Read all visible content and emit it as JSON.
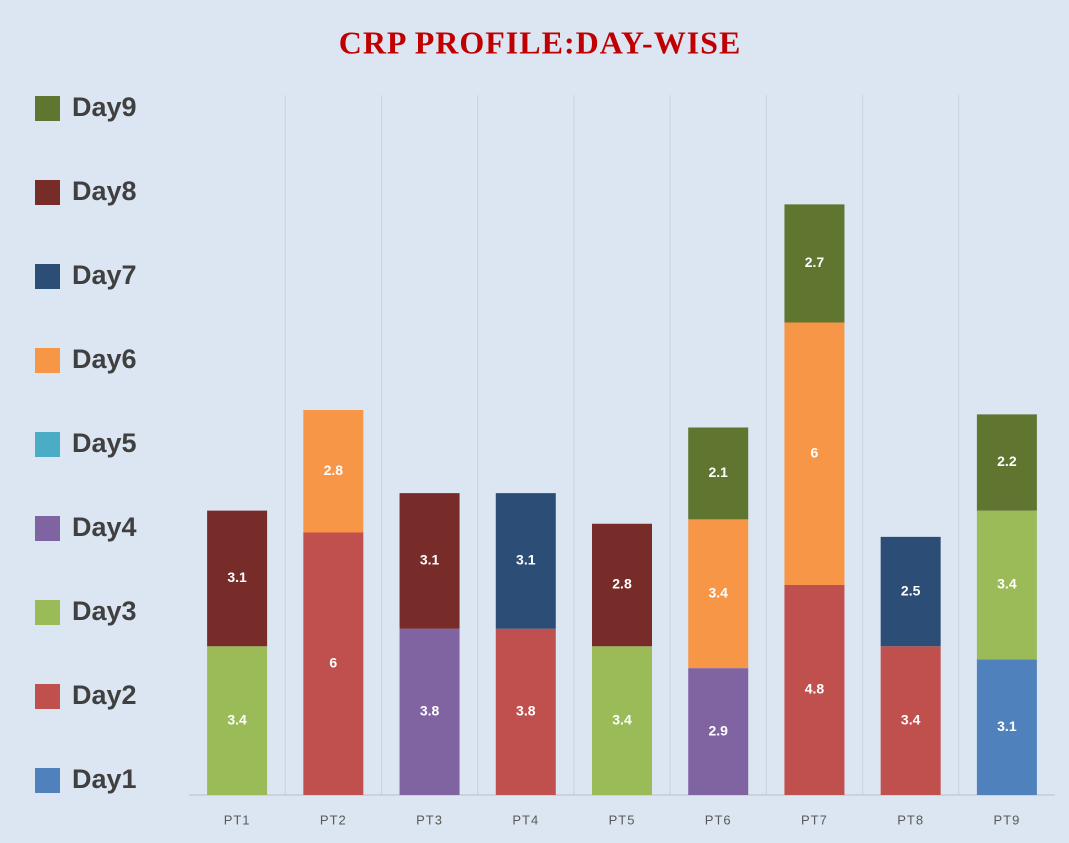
{
  "chart_data": {
    "type": "stacked_bar",
    "title": "CRP PROFILE:DAY-WISE",
    "categories": [
      "PT1",
      "PT2",
      "PT3",
      "PT4",
      "PT5",
      "PT6",
      "PT7",
      "PT8",
      "PT9"
    ],
    "series": [
      {
        "name": "Day1",
        "color": "#4f81bd",
        "values": [
          null,
          null,
          null,
          null,
          null,
          null,
          null,
          null,
          3.1
        ]
      },
      {
        "name": "Day2",
        "color": "#c0504d",
        "values": [
          null,
          6,
          null,
          3.8,
          null,
          null,
          4.8,
          3.4,
          null
        ]
      },
      {
        "name": "Day3",
        "color": "#9bbb59",
        "values": [
          3.4,
          null,
          null,
          null,
          3.4,
          null,
          null,
          null,
          3.4
        ]
      },
      {
        "name": "Day4",
        "color": "#8064a2",
        "values": [
          null,
          null,
          3.8,
          null,
          null,
          2.9,
          null,
          null,
          null
        ]
      },
      {
        "name": "Day5",
        "color": "#4bacc6",
        "values": [
          null,
          null,
          null,
          null,
          null,
          null,
          null,
          null,
          null
        ]
      },
      {
        "name": "Day6",
        "color": "#f79646",
        "values": [
          null,
          2.8,
          null,
          null,
          null,
          3.4,
          6,
          null,
          null
        ]
      },
      {
        "name": "Day7",
        "color": "#2c4d75",
        "values": [
          null,
          null,
          null,
          3.1,
          null,
          null,
          null,
          2.5,
          null
        ]
      },
      {
        "name": "Day8",
        "color": "#772c2a",
        "values": [
          3.1,
          null,
          3.1,
          null,
          2.8,
          null,
          null,
          null,
          null
        ]
      },
      {
        "name": "Day9",
        "color": "#5f7530",
        "values": [
          null,
          null,
          null,
          null,
          null,
          2.1,
          2.7,
          null,
          2.2
        ]
      }
    ],
    "ylim": [
      0,
      16
    ],
    "grid": true,
    "legend": "left"
  }
}
